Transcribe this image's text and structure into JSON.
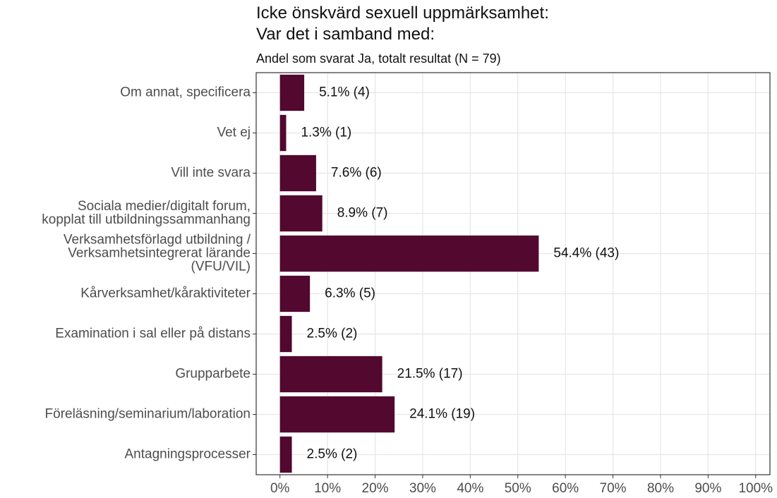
{
  "chart_data": {
    "type": "bar",
    "orientation": "horizontal",
    "title": "Icke önskvärd sexuell uppmärksamhet:\nVar det i samband med:",
    "subtitle": "Andel som svarat Ja, totalt resultat (N = 79)",
    "categories": [
      "Om annat, specificera",
      "Vet ej",
      "Vill inte svara",
      "Sociala medier/digitalt forum,\nkopplat till utbildningssammanhang",
      "Verksamhetsförlagd utbildning /\nVerksamhetsintegrerat lärande\n(VFU/VIL)",
      "Kårverksamhet/kåraktiviteter",
      "Examination i sal eller på distans",
      "Grupparbete",
      "Föreläsning/seminarium/laboration",
      "Antagningsprocesser"
    ],
    "values": [
      5.1,
      1.3,
      7.6,
      8.9,
      54.4,
      6.3,
      2.5,
      21.5,
      24.1,
      2.5
    ],
    "value_labels": [
      "5.1% (4)",
      "1.3% (1)",
      "7.6% (6)",
      "8.9% (7)",
      "54.4% (43)",
      "6.3% (5)",
      "2.5% (2)",
      "21.5% (17)",
      "24.1% (19)",
      "2.5% (2)"
    ],
    "color": "#52082f",
    "xlim": [
      -5,
      103
    ],
    "xticks": [
      {
        "value": 0,
        "label": "0%"
      },
      {
        "value": 10,
        "label": "10%"
      },
      {
        "value": 20,
        "label": "20%"
      },
      {
        "value": 30,
        "label": "30%"
      },
      {
        "value": 40,
        "label": "40%"
      },
      {
        "value": 50,
        "label": "50%"
      },
      {
        "value": 60,
        "label": "60%"
      },
      {
        "value": 70,
        "label": "70%"
      },
      {
        "value": 80,
        "label": "80%"
      },
      {
        "value": 90,
        "label": "90%"
      },
      {
        "value": 100,
        "label": "100%"
      }
    ],
    "grid": true
  }
}
